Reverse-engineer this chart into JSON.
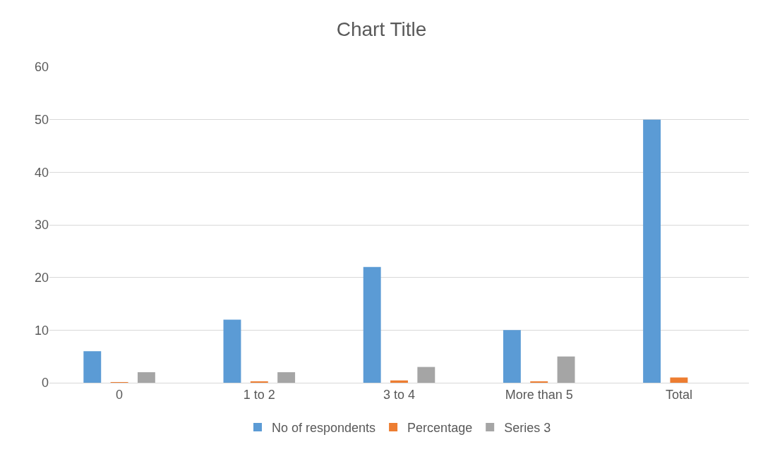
{
  "chart_data": {
    "type": "bar",
    "title": "Chart Title",
    "categories": [
      "0",
      "1 to 2",
      "3 to 4",
      "More than 5",
      "Total"
    ],
    "series": [
      {
        "name": "No of respondents",
        "color": "#5b9bd5",
        "values": [
          6,
          12,
          22,
          10,
          50
        ]
      },
      {
        "name": "Percentage",
        "color": "#ed7d31",
        "values": [
          0.12,
          0.24,
          0.44,
          0.2,
          1
        ]
      },
      {
        "name": "Series 3",
        "color": "#a5a5a5",
        "values": [
          2,
          2,
          3,
          5,
          null
        ]
      }
    ],
    "ylim": [
      0,
      60
    ],
    "yticks": [
      0,
      10,
      20,
      30,
      40,
      50,
      60
    ],
    "grid": "y",
    "legend": "bottom"
  }
}
